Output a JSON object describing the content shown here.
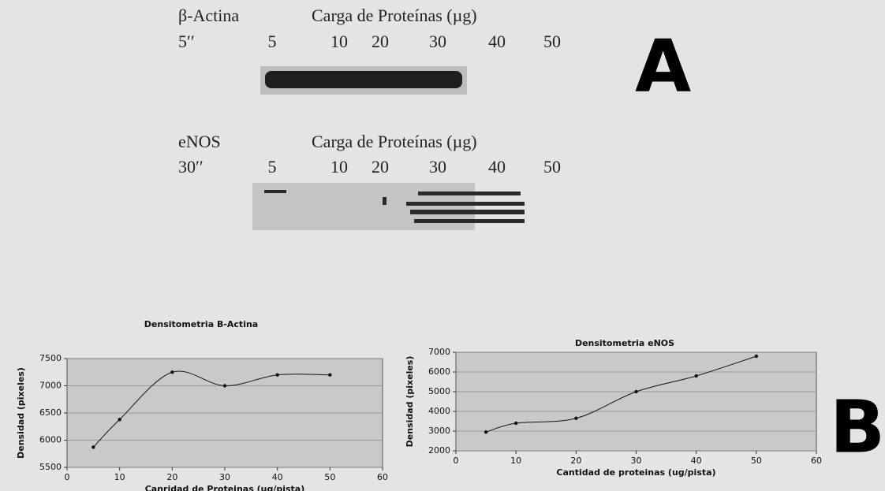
{
  "blots": [
    {
      "label": "β-Actina",
      "time": "5′′",
      "heading": "Carga de Proteínas (µg)",
      "lanes": [
        "5",
        "10",
        "20",
        "30",
        "40",
        "50"
      ]
    },
    {
      "label": "eNOS",
      "time": "30′′",
      "heading": "Carga de Proteínas (µg)",
      "lanes": [
        "5",
        "10",
        "20",
        "30",
        "40",
        "50"
      ]
    }
  ],
  "panels": [
    "A",
    "B"
  ],
  "chart_data": [
    {
      "type": "line",
      "title": "Densitometria B-Actina",
      "x_label": "Canridad de Proteinas (ug/pista)",
      "y_label": "Densidad (pixeles)",
      "x": [
        5,
        10,
        20,
        30,
        40,
        50
      ],
      "series": [
        {
          "color": "#111111",
          "values": [
            5870,
            6380,
            7250,
            7000,
            7200,
            7200
          ]
        }
      ],
      "xlim": [
        0,
        60
      ],
      "xticks": [
        0,
        10,
        20,
        30,
        40,
        50,
        60
      ],
      "ylim": [
        5500,
        7500
      ],
      "yticks": [
        5500,
        6000,
        6500,
        7000,
        7500
      ],
      "grid": true
    },
    {
      "type": "line",
      "title": "Densitometria eNOS",
      "x_label": "Cantidad de proteinas (ug/pista)",
      "y_label": "Densidad (pixeles)",
      "x": [
        5,
        10,
        20,
        30,
        40,
        50
      ],
      "series": [
        {
          "color": "#111111",
          "values": [
            2950,
            3400,
            3650,
            5000,
            5800,
            6800
          ]
        }
      ],
      "xlim": [
        0,
        60
      ],
      "xticks": [
        0,
        10,
        20,
        30,
        40,
        50,
        60
      ],
      "ylim": [
        2000,
        7000
      ],
      "yticks": [
        2000,
        3000,
        4000,
        5000,
        6000,
        7000
      ],
      "grid": true
    }
  ]
}
